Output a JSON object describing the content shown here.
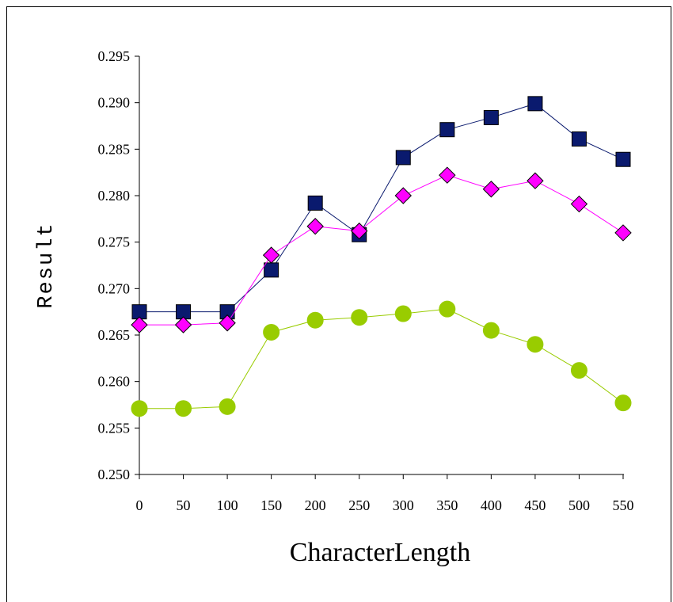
{
  "chart_data": {
    "type": "line",
    "xlabel": "CharacterLength",
    "ylabel": "Result",
    "x": [
      0,
      50,
      100,
      150,
      200,
      250,
      300,
      350,
      400,
      450,
      500,
      550
    ],
    "y_ticks": [
      "0.250",
      "0.255",
      "0.260",
      "0.265",
      "0.270",
      "0.275",
      "0.280",
      "0.285",
      "0.290",
      "0.295"
    ],
    "ylim": [
      0.25,
      0.295
    ],
    "grid": false,
    "legend": "none",
    "series": [
      {
        "marker": "square",
        "color": "#0a1a6e",
        "values": [
          0.2675,
          0.2675,
          0.2675,
          0.272,
          0.2792,
          0.2758,
          0.2841,
          0.2871,
          0.2884,
          0.2899,
          0.2861,
          0.2839
        ]
      },
      {
        "marker": "diamond",
        "color": "#ff00ff",
        "values": [
          0.2661,
          0.2661,
          0.2663,
          0.2736,
          0.2767,
          0.2762,
          0.28,
          0.2822,
          0.2807,
          0.2816,
          0.2791,
          0.276
        ]
      },
      {
        "marker": "circle",
        "color": "#99cc00",
        "values": [
          0.2571,
          0.2571,
          0.2573,
          0.2653,
          0.2666,
          0.2669,
          0.2673,
          0.2678,
          0.2655,
          0.264,
          0.2612,
          0.2577
        ]
      }
    ]
  }
}
